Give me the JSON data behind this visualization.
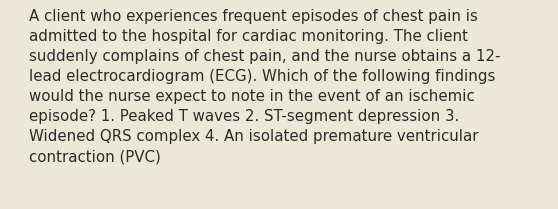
{
  "lines": [
    "A client who experiences frequent episodes of chest pain is",
    "admitted to the hospital for cardiac monitoring. The client",
    "suddenly complains of chest pain, and the nurse obtains a 12-",
    "lead electrocardiogram (ECG). Which of the following findings",
    "would the nurse expect to note in the event of an ischemic",
    "episode? 1. Peaked T waves 2. ST-segment depression 3.",
    "Widened QRS complex 4. An isolated premature ventricular",
    "contraction (PVC)"
  ],
  "background_color": "#ece8d8",
  "text_color": "#2b2b2b",
  "font_size": 10.8,
  "fig_width": 5.58,
  "fig_height": 2.09,
  "dpi": 100
}
